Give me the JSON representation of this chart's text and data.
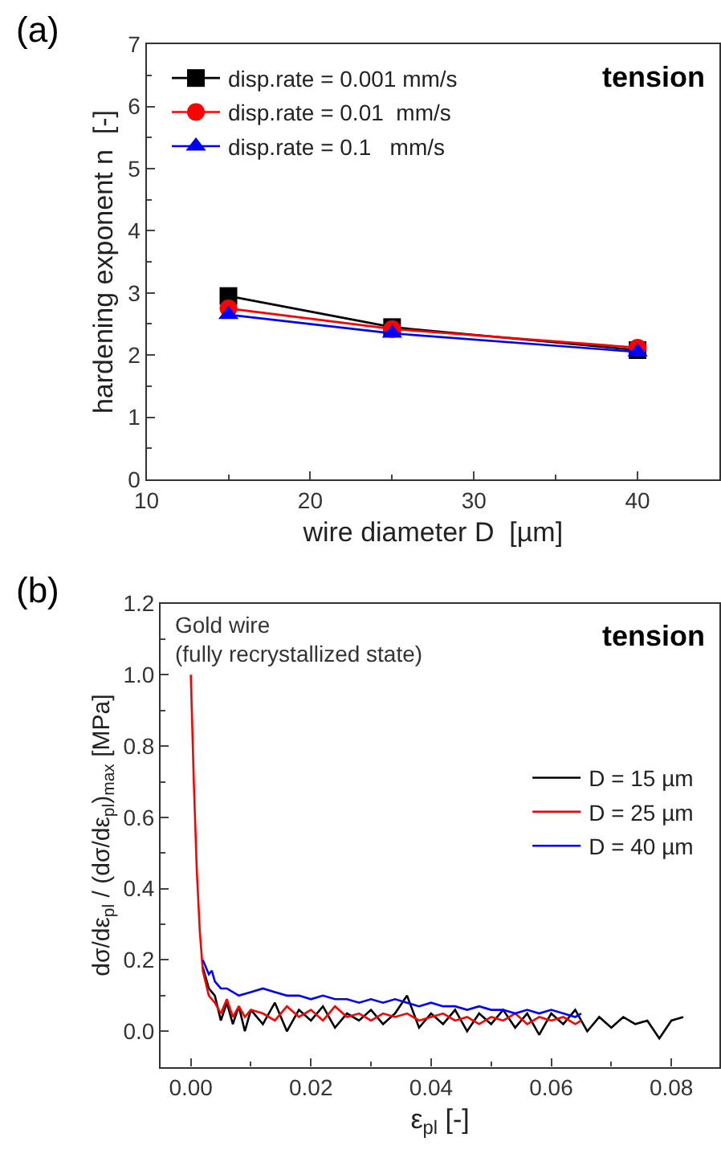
{
  "chart_data": [
    {
      "type": "line",
      "xlabel": "wire diameter D  [µm]",
      "ylabel": "hardening exponent n  [-]",
      "annotations": [
        "(a)",
        "tension"
      ],
      "x": [
        15,
        25,
        40
      ],
      "xlim": [
        10,
        45
      ],
      "xticks": [
        10,
        20,
        30,
        40
      ],
      "ylim": [
        0,
        7
      ],
      "yticks": [
        0,
        1,
        2,
        3,
        4,
        5,
        6,
        7
      ],
      "legend": "top left",
      "series": [
        {
          "name": "disp.rate = 0.001 mm/s",
          "color": "#000000",
          "marker": "square",
          "values": [
            2.95,
            2.45,
            2.08
          ]
        },
        {
          "name": "disp.rate = 0.01  mm/s",
          "color": "#ff0000",
          "marker": "circle",
          "values": [
            2.75,
            2.42,
            2.12
          ]
        },
        {
          "name": "disp.rate = 0.1   mm/s",
          "color": "#0000ff",
          "marker": "triangle",
          "values": [
            2.65,
            2.35,
            2.05
          ]
        }
      ]
    },
    {
      "type": "line",
      "xlabel": "ε$_{pl}$ [-]",
      "ylabel": "dσ/dε$_{pl}$ / (dσ/dε$_{pl}$)$_{max}$ [MPa]",
      "annotations": [
        "(b)",
        "Gold wire\n(fully recrystallized state)",
        "tension"
      ],
      "xlim": [
        -0.005,
        0.088
      ],
      "xticks": [
        {
          "value": 0,
          "label": "0.00"
        },
        0.02,
        0.04,
        0.06,
        0.08
      ],
      "ylim": [
        -0.1,
        1.2
      ],
      "yticks": [
        {
          "value": 0,
          "label": "0.0"
        },
        0.2,
        0.4,
        0.6,
        0.8,
        {
          "value": 1,
          "label": "1.0"
        },
        1.2
      ],
      "legend": "right",
      "marker": "none",
      "line_style": "solid",
      "series": [
        {
          "name": "D = 15 µm",
          "color": "#000000",
          "x": [
            0.002,
            0.003,
            0.004,
            0.005,
            0.006,
            0.007,
            0.008,
            0.009,
            0.01,
            0.012,
            0.014,
            0.016,
            0.018,
            0.02,
            0.022,
            0.024,
            0.026,
            0.028,
            0.03,
            0.032,
            0.034,
            0.036,
            0.038,
            0.04,
            0.042,
            0.044,
            0.046,
            0.048,
            0.05,
            0.052,
            0.054,
            0.056,
            0.058,
            0.06,
            0.062,
            0.064,
            0.066,
            0.068,
            0.07,
            0.072,
            0.074,
            0.076,
            0.078,
            0.08,
            0.082
          ],
          "values": [
            0.18,
            0.12,
            0.1,
            0.03,
            0.08,
            0.02,
            0.07,
            0.0,
            0.06,
            0.02,
            0.08,
            0.0,
            0.06,
            0.03,
            0.07,
            0.01,
            0.05,
            0.03,
            0.06,
            0.02,
            0.05,
            0.1,
            0.01,
            0.05,
            0.02,
            0.06,
            0.0,
            0.05,
            0.02,
            0.06,
            0.01,
            0.05,
            -0.01,
            0.05,
            0.02,
            0.06,
            0.0,
            0.04,
            0.01,
            0.04,
            0.02,
            0.03,
            -0.02,
            0.03,
            0.04
          ]
        },
        {
          "name": "D = 25 µm",
          "color": "#ff0000",
          "x": [
            0,
            0.0005,
            0.001,
            0.0015,
            0.002,
            0.003,
            0.004,
            0.005,
            0.006,
            0.007,
            0.008,
            0.009,
            0.01,
            0.012,
            0.014,
            0.016,
            0.018,
            0.02,
            0.022,
            0.024,
            0.026,
            0.028,
            0.03,
            0.032,
            0.034,
            0.036,
            0.038,
            0.04,
            0.042,
            0.044,
            0.046,
            0.048,
            0.05,
            0.052,
            0.054,
            0.056,
            0.058,
            0.06,
            0.062,
            0.064,
            0.065
          ],
          "values": [
            1.0,
            0.7,
            0.45,
            0.28,
            0.17,
            0.1,
            0.08,
            0.05,
            0.09,
            0.04,
            0.07,
            0.04,
            0.06,
            0.05,
            0.03,
            0.07,
            0.04,
            0.06,
            0.03,
            0.07,
            0.04,
            0.05,
            0.03,
            0.05,
            0.04,
            0.05,
            0.03,
            0.04,
            0.05,
            0.03,
            0.04,
            0.02,
            0.04,
            0.03,
            0.05,
            0.02,
            0.04,
            0.03,
            0.04,
            0.02,
            0.03
          ]
        },
        {
          "name": "D = 40 µm",
          "color": "#0000ff",
          "x": [
            0.002,
            0.003,
            0.0035,
            0.004,
            0.005,
            0.006,
            0.008,
            0.01,
            0.012,
            0.014,
            0.016,
            0.018,
            0.02,
            0.022,
            0.024,
            0.026,
            0.028,
            0.03,
            0.032,
            0.034,
            0.036,
            0.038,
            0.04,
            0.042,
            0.044,
            0.046,
            0.048,
            0.05,
            0.052,
            0.054,
            0.056,
            0.058,
            0.06,
            0.062,
            0.064,
            0.065
          ],
          "values": [
            0.2,
            0.16,
            0.17,
            0.14,
            0.12,
            0.12,
            0.1,
            0.11,
            0.12,
            0.11,
            0.1,
            0.1,
            0.09,
            0.1,
            0.09,
            0.09,
            0.08,
            0.09,
            0.08,
            0.09,
            0.08,
            0.07,
            0.08,
            0.07,
            0.07,
            0.06,
            0.07,
            0.06,
            0.06,
            0.05,
            0.06,
            0.05,
            0.06,
            0.05,
            0.04,
            0.05
          ]
        }
      ]
    }
  ]
}
